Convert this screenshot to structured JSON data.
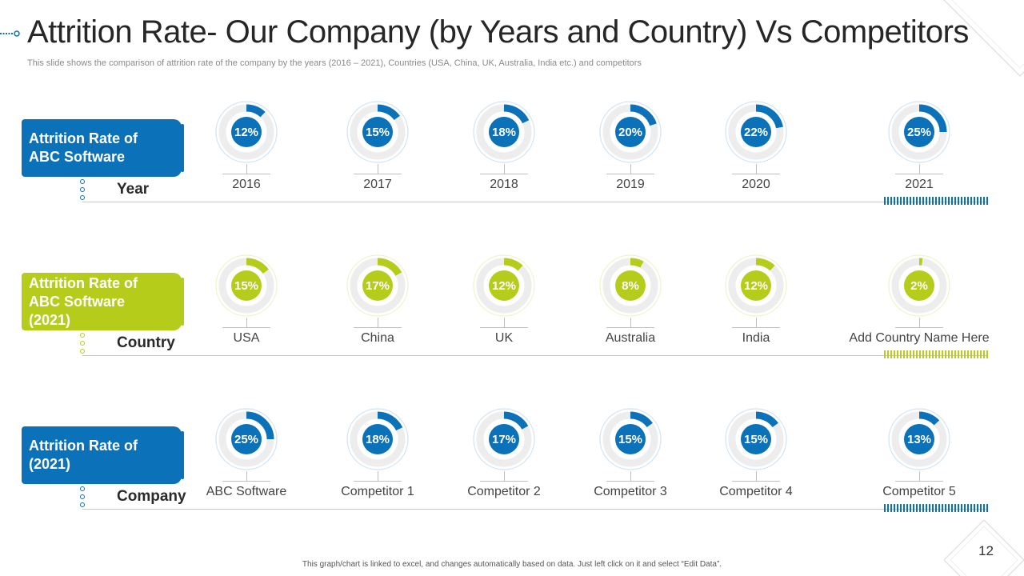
{
  "title": "Attrition Rate- Our Company (by Years and Country) Vs Competitors",
  "subtitle": "This slide shows the comparison of attrition rate of the company by the years (2016 – 2021), Countries (USA, China, UK, Australia, India etc.) and competitors",
  "footer": "This graph/chart is linked to excel, and changes automatically based on data. Just left click on it and select “Edit Data”.",
  "page_number": "12",
  "colors": {
    "blue": "#0B72B9",
    "green": "#B5CC1A",
    "ring": "#EDEDED",
    "ring_border_blue": "#CFE3F2",
    "ring_border_green": "#EEF3C9"
  },
  "rows": [
    {
      "label": "Attrition Rate of ABC Software",
      "sublabel": "Year"
    },
    {
      "label": "Attrition Rate of ABC Software (2021)",
      "sublabel": "Country"
    },
    {
      "label": "Attrition Rate of (2021)",
      "sublabel": "Company"
    }
  ],
  "chart_data": [
    {
      "type": "pie",
      "title": "Attrition Rate of ABC Software",
      "xlabel": "Year",
      "color": "#0B72B9",
      "categories": [
        "2016",
        "2017",
        "2018",
        "2019",
        "2020",
        "2021"
      ],
      "values": [
        12,
        15,
        18,
        20,
        22,
        25
      ],
      "labels": [
        "12%",
        "15%",
        "18%",
        "20%",
        "22%",
        "25%"
      ]
    },
    {
      "type": "pie",
      "title": "Attrition Rate of ABC Software (2021)",
      "xlabel": "Country",
      "color": "#B5CC1A",
      "categories": [
        "USA",
        "China",
        "UK",
        "Australia",
        "India",
        "Add Country Name Here"
      ],
      "values": [
        15,
        17,
        12,
        8,
        12,
        2
      ],
      "labels": [
        "15%",
        "17%",
        "12%",
        "8%",
        "12%",
        "2%"
      ]
    },
    {
      "type": "pie",
      "title": "Attrition Rate of (2021)",
      "xlabel": "Company",
      "color": "#0B72B9",
      "categories": [
        "ABC Software",
        "Competitor 1",
        "Competitor 2",
        "Competitor 3",
        "Competitor 4",
        "Competitor 5"
      ],
      "values": [
        25,
        18,
        17,
        15,
        15,
        13
      ],
      "labels": [
        "25%",
        "18%",
        "17%",
        "15%",
        "15%",
        "13%"
      ]
    }
  ]
}
